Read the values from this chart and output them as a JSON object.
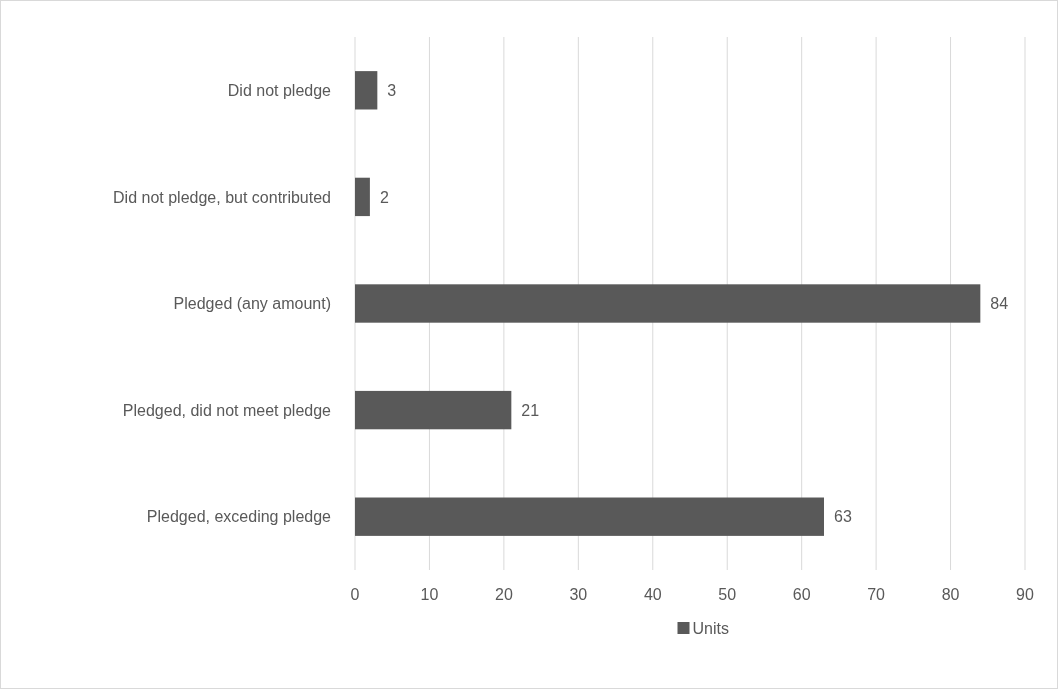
{
  "chart_data": {
    "type": "bar",
    "orientation": "horizontal",
    "categories": [
      "Did not pledge",
      "Did not pledge, but contributed",
      "Pledged (any amount)",
      "Pledged, did not meet pledge",
      "Pledged, exceding pledge"
    ],
    "series": [
      {
        "name": "Units",
        "color": "#595959",
        "values": [
          3,
          2,
          84,
          21,
          63
        ]
      }
    ],
    "xlim": [
      0,
      90
    ],
    "xticks": [
      0,
      10,
      20,
      30,
      40,
      50,
      60,
      70,
      80,
      90
    ],
    "grid": "x",
    "legend": "bottom",
    "data_labels": true
  }
}
